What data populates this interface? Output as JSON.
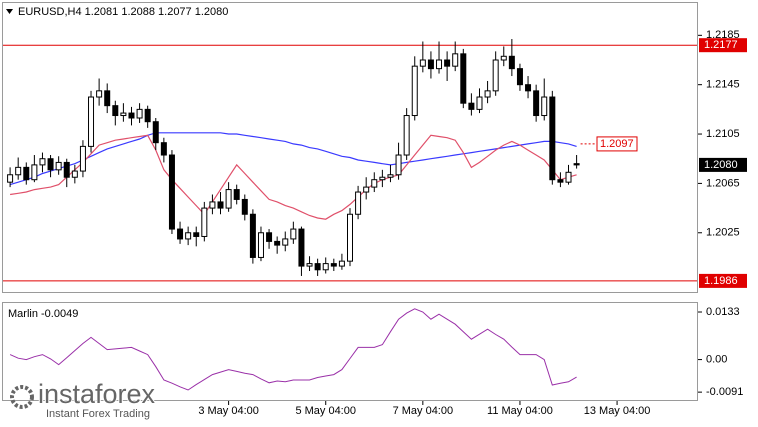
{
  "chart_data": [
    {
      "type": "candlestick",
      "title": "EURUSD,H4 1.2081 1.2088 1.2077 1.2080",
      "open": [
        1.2066,
        1.2072,
        1.2078,
        1.2068,
        1.208,
        1.2085,
        1.2076,
        1.2082,
        1.207,
        1.2075,
        1.2095,
        1.2135,
        1.214,
        1.2128,
        1.212,
        1.2122,
        1.2118,
        1.2125,
        1.2115,
        1.2098,
        1.2088,
        1.2028,
        1.202,
        1.2025,
        1.2022,
        1.2045,
        1.205,
        1.2045,
        1.206,
        1.2052,
        1.204,
        1.2005,
        1.2025,
        1.2018,
        1.2015,
        1.202,
        1.2028,
        1.1998,
        1.2,
        1.1995,
        1.2,
        1.1998,
        1.2002,
        1.204,
        1.2058,
        1.2062,
        1.2068,
        1.207,
        1.2072,
        1.2088,
        1.212,
        1.216,
        1.2165,
        1.2158,
        1.2165,
        1.216,
        1.217,
        1.213,
        1.2125,
        1.2135,
        1.214,
        1.2165,
        1.2168,
        1.2158,
        1.2145,
        1.214,
        1.212,
        1.2135,
        1.2068,
        1.2066,
        1.2081
      ],
      "high": [
        1.2078,
        1.2086,
        1.2082,
        1.2088,
        1.209,
        1.2088,
        1.2087,
        1.2085,
        1.208,
        1.21,
        1.214,
        1.215,
        1.2146,
        1.2132,
        1.213,
        1.2127,
        1.213,
        1.2128,
        1.2118,
        1.2102,
        1.2092,
        1.2034,
        1.203,
        1.203,
        1.205,
        1.2056,
        1.2058,
        1.2066,
        1.2064,
        1.2056,
        1.2044,
        1.203,
        1.2028,
        1.2022,
        1.2026,
        1.2034,
        1.203,
        1.2006,
        1.2004,
        1.2005,
        1.2004,
        1.2008,
        1.2045,
        1.2063,
        1.207,
        1.2074,
        1.2076,
        1.208,
        1.2098,
        1.2126,
        1.2168,
        1.218,
        1.2172,
        1.218,
        1.2172,
        1.218,
        1.2174,
        1.2138,
        1.2142,
        1.2148,
        1.2172,
        1.2176,
        1.2182,
        1.2162,
        1.2152,
        1.2145,
        1.215,
        1.214,
        1.2074,
        1.208,
        1.2088
      ],
      "low": [
        1.2062,
        1.2068,
        1.2064,
        1.2066,
        1.2074,
        1.207,
        1.2072,
        1.2062,
        1.2065,
        1.207,
        1.209,
        1.2128,
        1.2122,
        1.2112,
        1.2115,
        1.2112,
        1.2114,
        1.211,
        1.2092,
        1.2082,
        1.2024,
        1.2016,
        1.2015,
        1.2014,
        1.2018,
        1.204,
        1.204,
        1.2042,
        1.2048,
        1.2035,
        1.2,
        1.2002,
        1.2012,
        1.2008,
        1.201,
        1.2016,
        1.199,
        1.1994,
        1.199,
        1.1992,
        1.1994,
        1.1995,
        1.1998,
        1.2036,
        1.2052,
        1.2058,
        1.2062,
        1.2066,
        1.2068,
        1.2084,
        1.2116,
        1.2155,
        1.215,
        1.2154,
        1.2148,
        1.2156,
        1.2126,
        1.212,
        1.2122,
        1.213,
        1.2136,
        1.216,
        1.2152,
        1.214,
        1.2134,
        1.2115,
        1.2116,
        1.2064,
        1.2062,
        1.2064,
        1.2077
      ],
      "close": [
        1.2072,
        1.2078,
        1.2068,
        1.208,
        1.2085,
        1.2076,
        1.2082,
        1.207,
        1.2075,
        1.2095,
        1.2135,
        1.214,
        1.2128,
        1.212,
        1.2122,
        1.2118,
        1.2125,
        1.2115,
        1.2098,
        1.2088,
        1.2028,
        1.202,
        1.2025,
        1.2022,
        1.2045,
        1.205,
        1.2045,
        1.206,
        1.2052,
        1.204,
        1.2005,
        1.2025,
        1.2018,
        1.2015,
        1.202,
        1.2028,
        1.1998,
        1.2,
        1.1995,
        1.2,
        1.1998,
        1.2002,
        1.204,
        1.2058,
        1.2062,
        1.2068,
        1.207,
        1.2072,
        1.2088,
        1.212,
        1.216,
        1.2165,
        1.2158,
        1.2165,
        1.216,
        1.217,
        1.213,
        1.2125,
        1.2135,
        1.214,
        1.2165,
        1.2168,
        1.2158,
        1.2145,
        1.214,
        1.212,
        1.2135,
        1.2068,
        1.2066,
        1.2074,
        1.208
      ],
      "series": [
        {
          "color": "#3a3aff",
          "values": [
            1.2064,
            1.2066,
            1.2068,
            1.207,
            1.2073,
            1.2075,
            1.2077,
            1.2079,
            1.2081,
            1.2084,
            1.2087,
            1.209,
            1.2093,
            1.2095,
            1.2097,
            1.2099,
            1.2101,
            1.2104,
            1.2106,
            1.2106,
            1.2106,
            1.2106,
            1.2106,
            1.2106,
            1.2106,
            1.2106,
            1.2106,
            1.2105,
            1.2105,
            1.2104,
            1.2103,
            1.2102,
            1.2101,
            1.21,
            1.2099,
            1.2097,
            1.2096,
            1.2094,
            1.2093,
            1.2091,
            1.2089,
            1.2087,
            1.2086,
            1.2084,
            1.2083,
            1.2082,
            1.2081,
            1.208,
            1.2081,
            1.2082,
            1.2083,
            1.2084,
            1.2085,
            1.2086,
            1.2087,
            1.2088,
            1.2089,
            1.209,
            1.2091,
            1.2092,
            1.2093,
            1.2094,
            1.2095,
            1.2096,
            1.2097,
            1.2098,
            1.2099,
            1.2099,
            1.2098,
            1.2097,
            1.2095
          ]
        },
        {
          "color": "#e0506a",
          "values": [
            1.2056,
            1.2057,
            1.2058,
            1.206,
            1.2061,
            1.2062,
            1.2064,
            1.207,
            1.2076,
            1.2082,
            1.2089,
            1.2096,
            1.2098,
            1.21,
            1.2101,
            1.2102,
            1.2103,
            1.2104,
            1.2092,
            1.2076,
            1.2068,
            1.2061,
            1.2054,
            1.2047,
            1.204,
            1.205,
            1.206,
            1.207,
            1.208,
            1.2073,
            1.2066,
            1.2059,
            1.2052,
            1.205,
            1.2047,
            1.2045,
            1.2042,
            1.2039,
            1.2037,
            1.2036,
            1.204,
            1.2043,
            1.2048,
            1.2054,
            1.206,
            1.2065,
            1.2068,
            1.207,
            1.2072,
            1.208,
            1.2088,
            1.2096,
            1.2104,
            1.2103,
            1.2102,
            1.21,
            1.209,
            1.2078,
            1.2082,
            1.2087,
            1.2092,
            1.2096,
            1.2099,
            1.2096,
            1.2092,
            1.2088,
            1.2084,
            1.2076,
            1.2068,
            1.207,
            1.2072
          ]
        }
      ],
      "hlines": [
        1.2177,
        1.1986
      ],
      "hline_color": "#e00000",
      "current_price": {
        "value": 1.208,
        "label": "1.2080"
      },
      "price_label": 1.2097,
      "xlim": [
        -1,
        85
      ],
      "ylim": [
        1.1977,
        1.2212
      ],
      "yticks": [
        1.2185,
        1.2145,
        1.2105,
        1.2065,
        1.2025
      ]
    },
    {
      "type": "line",
      "title": "Marlin -0.0049",
      "color": "#9a30a8",
      "values": [
        0.0014,
        0.0004,
        0.0,
        0.0008,
        0.0014,
        0.0002,
        -0.0014,
        0.0005,
        0.0025,
        0.0045,
        0.0062,
        0.0045,
        0.0028,
        0.003,
        0.0032,
        0.0034,
        0.0024,
        0.0014,
        -0.002,
        -0.0057,
        -0.0066,
        -0.0076,
        -0.0085,
        -0.007,
        -0.0056,
        -0.0042,
        -0.0035,
        -0.0028,
        -0.0033,
        -0.0038,
        -0.0042,
        -0.0054,
        -0.0065,
        -0.006,
        -0.0062,
        -0.0057,
        -0.0057,
        -0.0057,
        -0.005,
        -0.0046,
        -0.0042,
        -0.0028,
        0.0003,
        0.0034,
        0.0034,
        0.0034,
        0.0042,
        0.0078,
        0.0113,
        0.013,
        0.0142,
        0.0133,
        0.0113,
        0.0127,
        0.0113,
        0.0099,
        0.0078,
        0.0057,
        0.0071,
        0.0085,
        0.007,
        0.0057,
        0.0035,
        0.0014,
        0.0014,
        0.0014,
        0.0,
        -0.0071,
        -0.0066,
        -0.0062,
        -0.0049
      ],
      "xlim": [
        -1,
        85
      ],
      "ylim": [
        -0.0113,
        0.0161
      ],
      "yticks": [
        0.0133,
        {
          "value": 0,
          "label": "0.00"
        },
        -0.0091
      ],
      "xticks": [
        {
          "value": 27,
          "label": "3 May 04:00"
        },
        {
          "value": 39,
          "label": "5 May 04:00"
        },
        {
          "value": 51,
          "label": "7 May 04:00"
        },
        {
          "value": 63,
          "label": "11 May 04:00"
        },
        {
          "value": 75,
          "label": "13 May 04:00"
        }
      ]
    }
  ],
  "watermark": {
    "brand": "instaforex",
    "tagline": "Instant Forex Trading"
  }
}
